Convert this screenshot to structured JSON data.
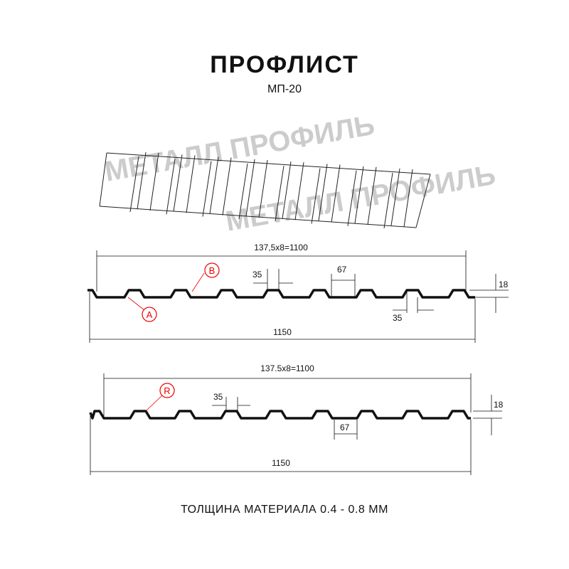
{
  "header": {
    "title": "ПРОФЛИСТ",
    "subtitle": "МП-20"
  },
  "watermark": {
    "text": "МЕТАЛЛ ПРОФИЛЬ"
  },
  "profile_1": {
    "pitch_label": "137,5x8=1100",
    "width_label": "1150",
    "top_width": "35",
    "bottom_width": "35",
    "valley_width": "67",
    "height": "18",
    "marker_a": "A",
    "marker_b": "B"
  },
  "profile_2": {
    "pitch_label": "137.5x8=1100",
    "width_label": "1150",
    "top_width": "35",
    "valley_width": "67",
    "height": "18",
    "marker_r": "R"
  },
  "footer": {
    "thickness": "ТОЛЩИНА МАТЕРИАЛА 0.4 - 0.8 ММ"
  },
  "colors": {
    "line": "#111111",
    "marker": "#e00000",
    "watermark": "#cccccc"
  }
}
